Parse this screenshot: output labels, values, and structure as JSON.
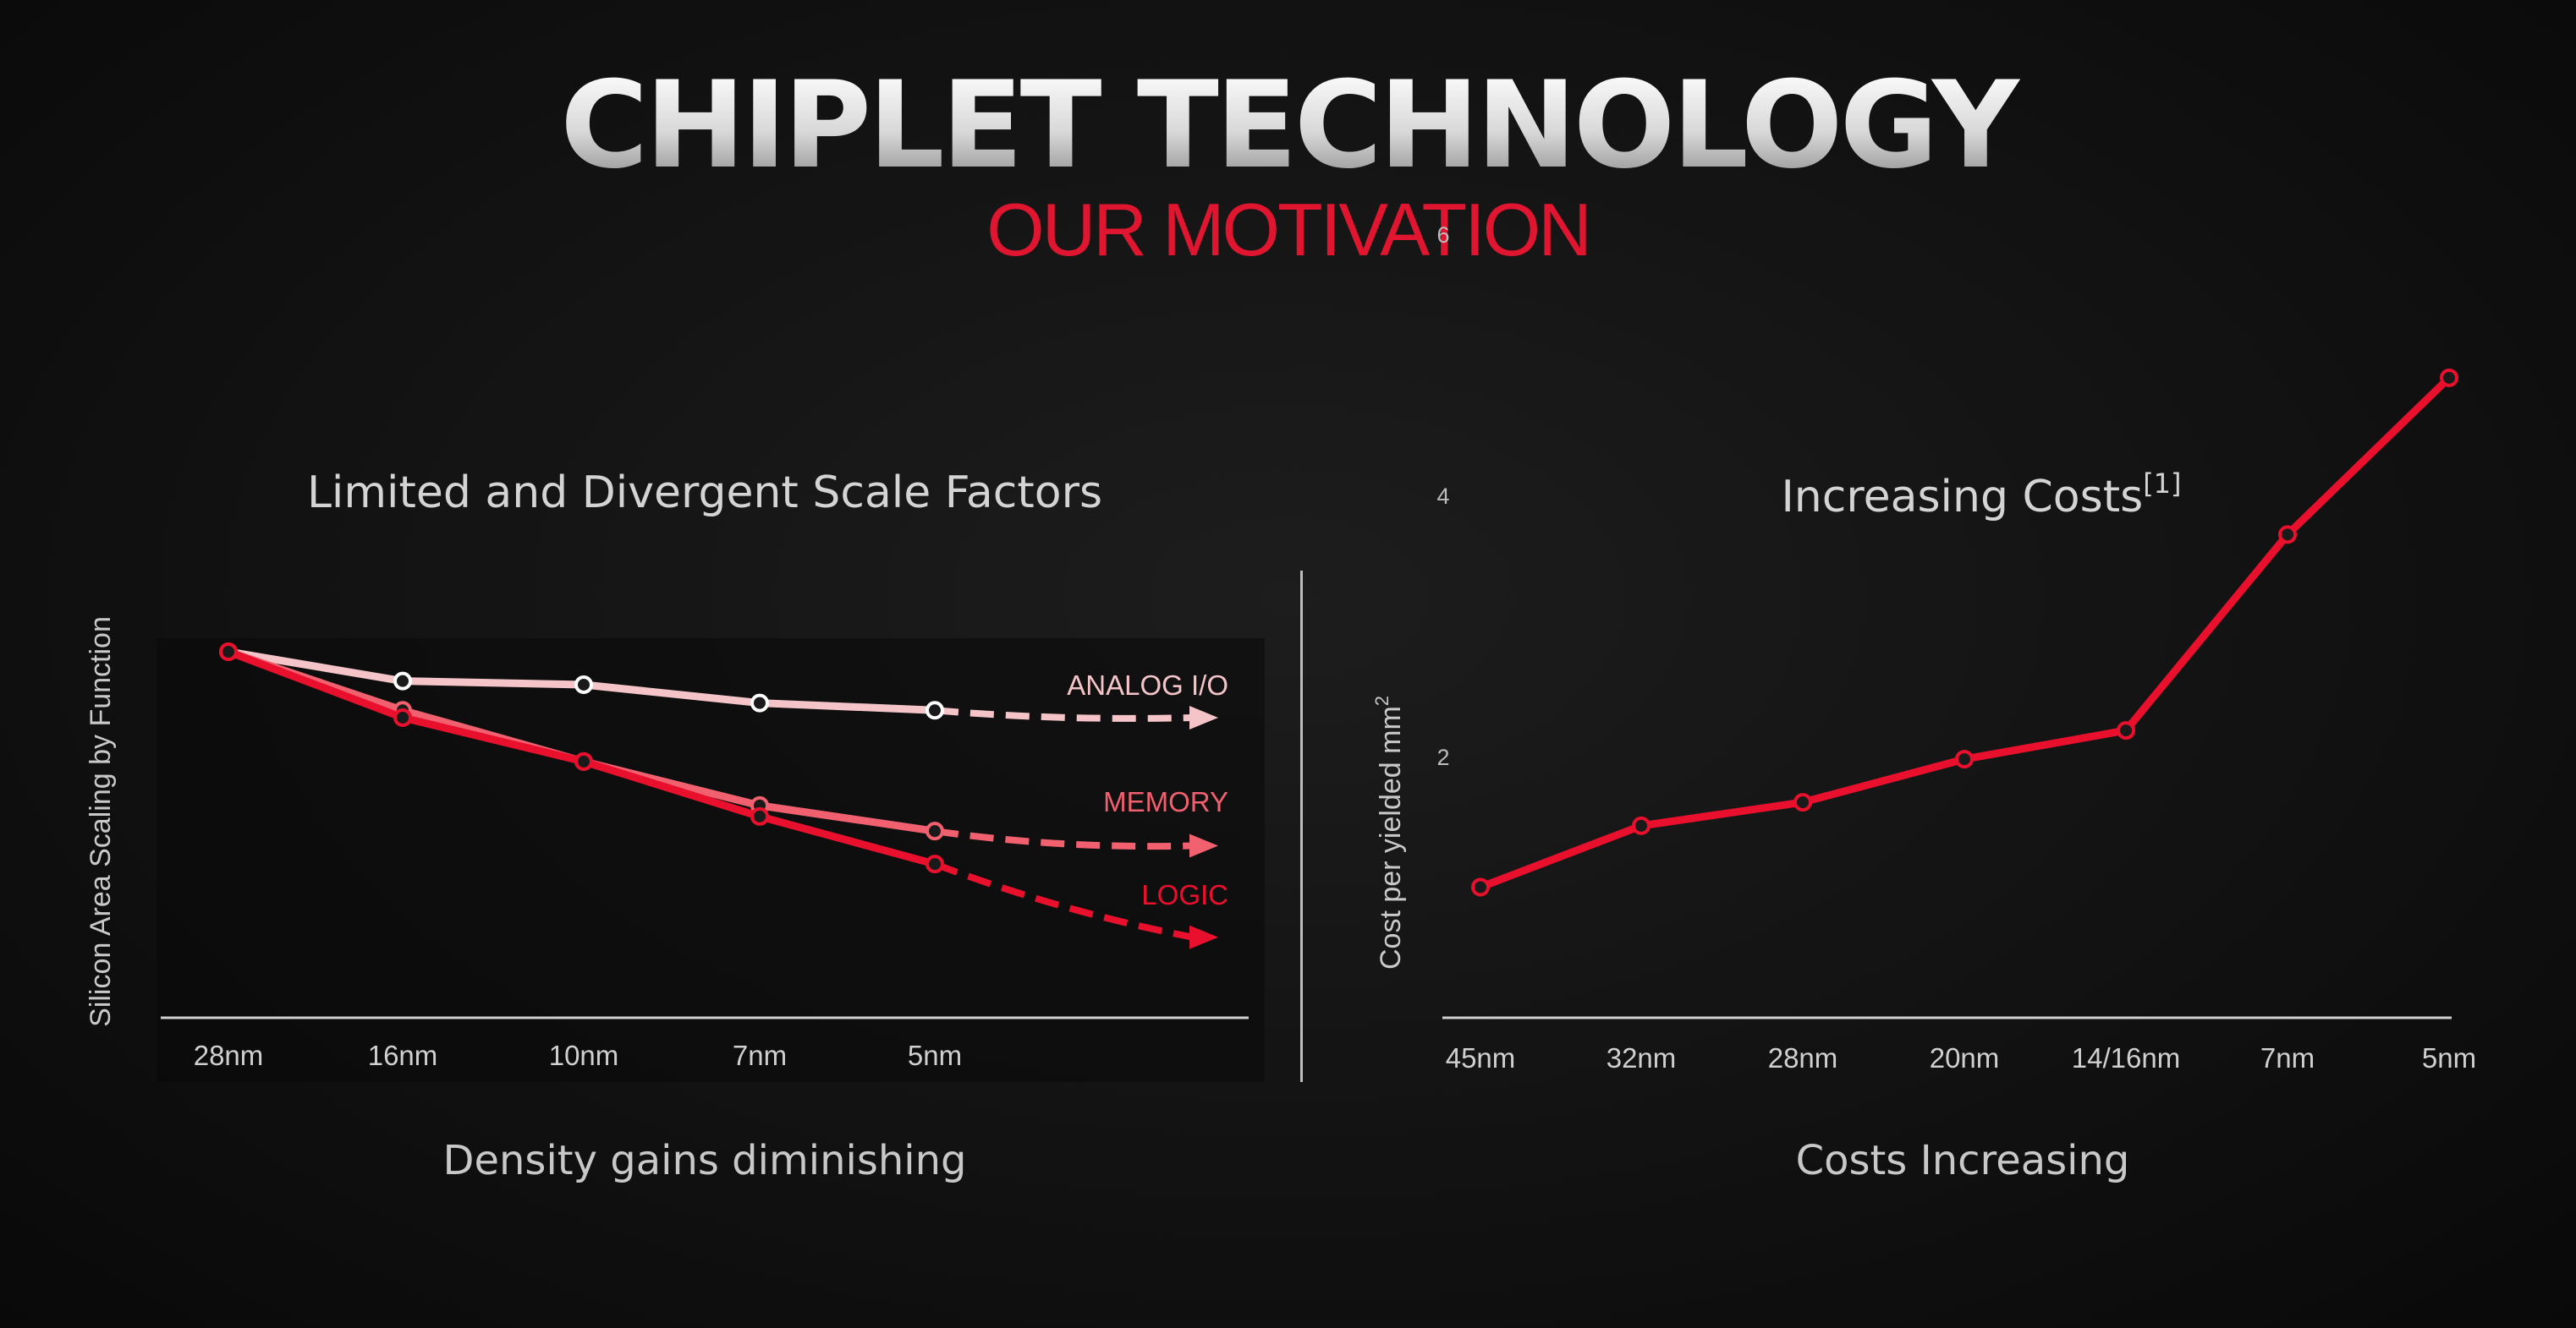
{
  "header": {
    "title": "CHIPLET TECHNOLOGY",
    "subtitle": "OUR MOTIVATION"
  },
  "colors": {
    "logic": "#e8102c",
    "memory": "#f0606e",
    "analog": "#f4c4c9",
    "axis": "#d0d0d0",
    "text": "#d4d4d4"
  },
  "chart_data": [
    {
      "type": "line",
      "title": "Limited and Divergent Scale Factors",
      "ylabel": "Silicon Area Scaling by Function",
      "footer": "Density gains diminishing",
      "categories": [
        "28nm",
        "16nm",
        "10nm",
        "7nm",
        "5nm"
      ],
      "ylim": [
        0,
        1
      ],
      "series": [
        {
          "name": "ANALOG I/O",
          "values": [
            1.0,
            0.92,
            0.91,
            0.86,
            0.84
          ],
          "projected_end": 0.82
        },
        {
          "name": "MEMORY",
          "values": [
            1.0,
            0.84,
            0.7,
            0.58,
            0.51
          ],
          "projected_end": 0.47
        },
        {
          "name": "LOGIC",
          "values": [
            1.0,
            0.82,
            0.7,
            0.55,
            0.42
          ],
          "projected_end": 0.22
        }
      ]
    },
    {
      "type": "line",
      "title": "Increasing Costs",
      "title_sup": "[1]",
      "ylabel": "Cost per yielded mm",
      "ylabel_sup": "2",
      "footer": "Costs Increasing",
      "categories": [
        "45nm",
        "32nm",
        "28nm",
        "20nm",
        "14/16nm",
        "7nm",
        "5nm"
      ],
      "yticks": [
        2,
        4,
        6
      ],
      "ylim": [
        0,
        6
      ],
      "series": [
        {
          "name": "Cost",
          "values": [
            1.0,
            1.47,
            1.65,
            1.98,
            2.2,
            3.7,
            4.9
          ]
        }
      ]
    }
  ]
}
